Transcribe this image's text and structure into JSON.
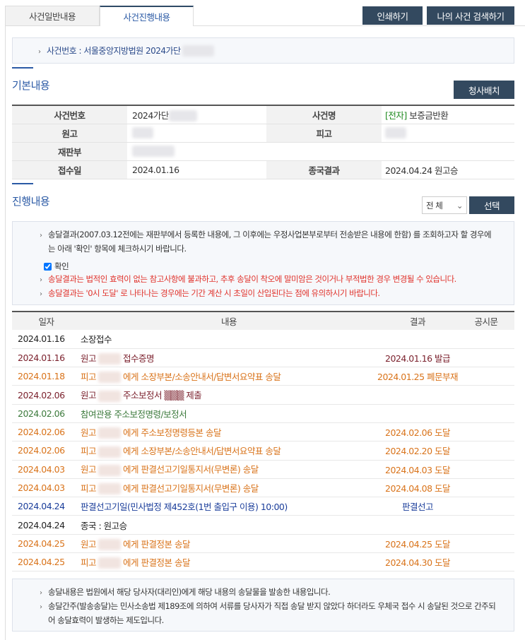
{
  "tabs": [
    {
      "label": "사건일반내용"
    },
    {
      "label": "사건진행내용"
    }
  ],
  "buttons": {
    "print": "인쇄하기",
    "my_search": "나의 사건 검색하기",
    "courthouse_map": "청사배치",
    "select": "선택"
  },
  "case_header": "사건번호 : 서울중앙지방법원 2024가단",
  "basic": {
    "title": "기본내용",
    "labels": {
      "case_no": "사건번호",
      "case_name": "사건명",
      "plaintiff": "원고",
      "defendant": "피고",
      "division": "재판부",
      "filed": "접수일",
      "final_result": "종국결과"
    },
    "values": {
      "case_no": "2024가단",
      "case_tag": "[전자]",
      "case_name": "보증금반환",
      "filed": "2024.01.16",
      "final_result": "2024.04.24 원고승"
    }
  },
  "progress": {
    "title": "진행내용",
    "filter": "전 체",
    "notices": [
      "송달결과(2007.03.12전에는 재판부에서 등록한 내용에, 그 이후에는 우정사업본부로부터 전송받은 내용에 한함) 를 조회하고자 할 경우에는 아래 '확인' 항목에 체크하시기 바랍니다."
    ],
    "checkbox_label": "확인",
    "checked": true,
    "warnings": [
      "송달결과는 법적인 효력이 없는 참고사항에 불과하고, 추후 송달이 착오에 말미암은 것이거나 부적법한 경우 변경될 수 있습니다.",
      "송달결과는 '0시 도달' 로 나타나는 경우에는 기간 계산 시 초일이 산입된다는 점에 유의하시기 바랍니다."
    ],
    "columns": [
      "일자",
      "내용",
      "결과",
      "공시문"
    ],
    "rows": [
      {
        "date": "2024.01.16",
        "pre": "소장접수",
        "post": "",
        "result": "",
        "color": "black",
        "blur": false
      },
      {
        "date": "2024.01.16",
        "pre": "원고",
        "post": "접수증명",
        "result": "2024.01.16 발급",
        "color": "dred",
        "blur": true
      },
      {
        "date": "2024.01.18",
        "pre": "피고",
        "post": "에게 소장부본/소송안내서/답변서요약표 송달",
        "result": "2024.01.25 폐문부재",
        "color": "orange",
        "blur": true
      },
      {
        "date": "2024.02.06",
        "pre": "원고",
        "post": "주소보정서 ▒▒▒ 제출",
        "result": "",
        "color": "dred",
        "blur": true
      },
      {
        "date": "2024.02.06",
        "pre": "참여관용 주소보정명령/보정서",
        "post": "",
        "result": "",
        "color": "green",
        "blur": false
      },
      {
        "date": "2024.02.06",
        "pre": "원고",
        "post": "에게 주소보정명령등본 송달",
        "result": "2024.02.06 도달",
        "color": "orange",
        "blur": true
      },
      {
        "date": "2024.02.06",
        "pre": "피고",
        "post": "에게 소장부본/소송안내서/답변서요약표 송달",
        "result": "2024.02.20 도달",
        "color": "orange",
        "blur": true
      },
      {
        "date": "2024.04.03",
        "pre": "원고",
        "post": "에게 판결선고기일통지서(무변론) 송달",
        "result": "2024.04.03 도달",
        "color": "orange",
        "blur": true
      },
      {
        "date": "2024.04.03",
        "pre": "피고",
        "post": "에게 판결선고기일통지서(무변론) 송달",
        "result": "2024.04.08 도달",
        "color": "orange",
        "blur": true
      },
      {
        "date": "2024.04.24",
        "pre": "판결선고기일(민사법정 제452호(1번 출입구 이용) 10:00)",
        "post": "",
        "result": "판결선고",
        "color": "blue",
        "blur": false
      },
      {
        "date": "2024.04.24",
        "pre": "종국 : 원고승",
        "post": "",
        "result": "",
        "color": "black",
        "blur": false
      },
      {
        "date": "2024.04.25",
        "pre": "원고",
        "post": "에게 판결정본 송달",
        "result": "2024.04.25 도달",
        "color": "orange",
        "blur": true
      },
      {
        "date": "2024.04.25",
        "pre": "피고",
        "post": "에게 판결정본 송달",
        "result": "2024.04.30 도달",
        "color": "orange",
        "blur": true
      }
    ]
  },
  "footer_notes": [
    "송달내용은 법원에서 해당 당사자(대리인)에게 해당 내용의 송달물을 발송한 내용입니다.",
    "송달간주(발송송달)는 민사소송법 제189조에 의하여 서류를 당사자가 직접 송달 받지 않았다 하더라도 우체국 접수 시 송달된 것으로 간주되어 송달효력이 발생하는 제도입니다."
  ],
  "colors": {
    "button": "#33495f",
    "accent": "#2b5aa5",
    "warning": "#e0322b",
    "orange": "#d9731a",
    "dark_red": "#7a1f2b",
    "green": "#3c7a3c",
    "blue": "#1a3d9a"
  }
}
